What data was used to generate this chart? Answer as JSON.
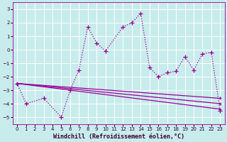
{
  "title": "",
  "xlabel": "Windchill (Refroidissement éolien,°C)",
  "bg_color": "#c8ecec",
  "line_color": "#990099",
  "grid_color": "#ffffff",
  "xlim": [
    -0.5,
    23.5
  ],
  "ylim": [
    -5.5,
    3.5
  ],
  "xticks": [
    0,
    1,
    2,
    3,
    4,
    5,
    6,
    7,
    8,
    9,
    10,
    11,
    12,
    13,
    14,
    15,
    16,
    17,
    18,
    19,
    20,
    21,
    22,
    23
  ],
  "yticks": [
    -5,
    -4,
    -3,
    -2,
    -1,
    0,
    1,
    2,
    3
  ],
  "zigzag_x": [
    0,
    1,
    3,
    5,
    6,
    7,
    8,
    9,
    10,
    12,
    13,
    14,
    15,
    16,
    17,
    18,
    19,
    20,
    21,
    22,
    23
  ],
  "zigzag_y": [
    -2.5,
    -4.0,
    -3.6,
    -5.0,
    -3.0,
    -1.5,
    1.7,
    0.5,
    -0.1,
    1.7,
    2.0,
    2.7,
    -1.3,
    -2.0,
    -1.7,
    -1.6,
    -0.5,
    -1.5,
    -0.3,
    -0.2,
    -4.5
  ],
  "line1_x": [
    0,
    23
  ],
  "line1_y": [
    -2.5,
    -4.4
  ],
  "line2_x": [
    0,
    23
  ],
  "line2_y": [
    -2.5,
    -3.6
  ],
  "line3_x": [
    0,
    23
  ],
  "line3_y": [
    -2.5,
    -4.0
  ],
  "tick_fontsize": 5,
  "xlabel_fontsize": 6
}
